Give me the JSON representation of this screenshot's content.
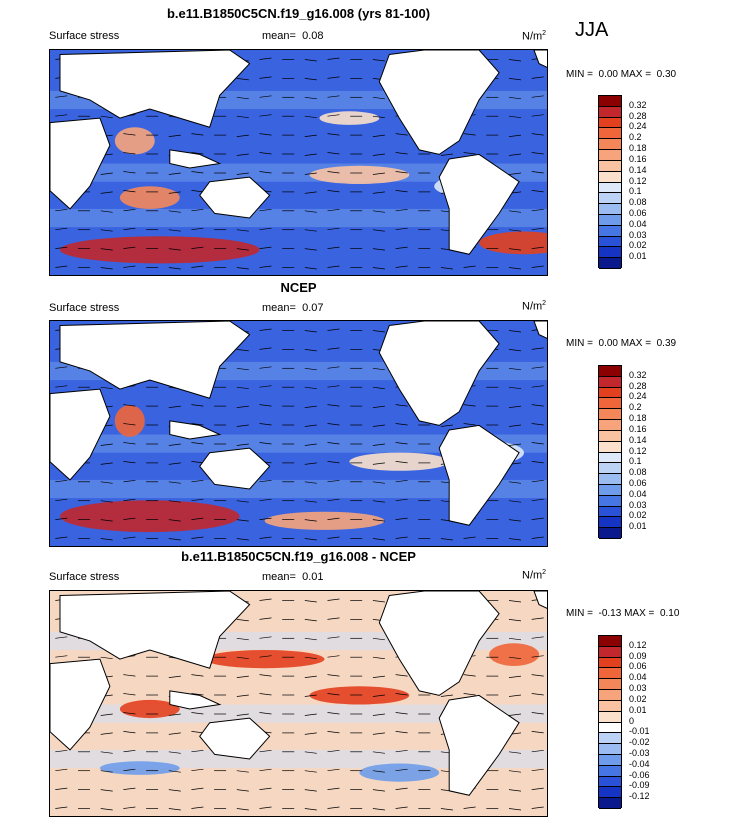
{
  "season": "JJA",
  "chart_data": [
    {
      "type": "heatmap",
      "title": "b.e11.B1850C5CN.f19_g16.008 (yrs 81-100)",
      "left_label": "Surface stress",
      "mean_label": "mean=",
      "mean_value": "0.08",
      "units": "N/m",
      "units_sup": "2",
      "minmax": {
        "min_label": "MIN =",
        "min": "0.00",
        "max_label": "MAX =",
        "max": "0.30"
      },
      "colorbar_levels": [
        "0.32",
        "0.28",
        "0.24",
        "0.2",
        "0.18",
        "0.16",
        "0.14",
        "0.12",
        "0.1",
        "0.08",
        "0.06",
        "0.04",
        "0.03",
        "0.02",
        "0.01"
      ],
      "colorbar_colors": [
        "#8b0000",
        "#c1272d",
        "#e3401f",
        "#f0653a",
        "#f4875a",
        "#f7a47c",
        "#f9c3a2",
        "#fbe1cb",
        "#dde9f9",
        "#bdd3f5",
        "#9bbcf0",
        "#6f9cea",
        "#4676e3",
        "#2a52d8",
        "#1634c4",
        "#0a1a8c"
      ],
      "regions": [
        {
          "level": 0.28,
          "cx": 0.22,
          "cy": 0.88,
          "rx": 0.2,
          "ry": 0.06
        },
        {
          "level": 0.24,
          "cx": 0.95,
          "cy": 0.85,
          "rx": 0.09,
          "ry": 0.05
        },
        {
          "level": 0.18,
          "cx": 0.2,
          "cy": 0.65,
          "rx": 0.06,
          "ry": 0.05
        },
        {
          "level": 0.16,
          "cx": 0.17,
          "cy": 0.4,
          "rx": 0.04,
          "ry": 0.06
        },
        {
          "level": 0.14,
          "cx": 0.62,
          "cy": 0.55,
          "rx": 0.1,
          "ry": 0.04
        },
        {
          "level": 0.12,
          "cx": 0.6,
          "cy": 0.3,
          "rx": 0.06,
          "ry": 0.03
        },
        {
          "level": 0.1,
          "cx": 0.85,
          "cy": 0.6,
          "rx": 0.08,
          "ry": 0.05
        }
      ]
    },
    {
      "type": "heatmap",
      "title": "NCEP",
      "left_label": "Surface stress",
      "mean_label": "mean=",
      "mean_value": "0.07",
      "units": "N/m",
      "units_sup": "2",
      "minmax": {
        "min_label": "MIN =",
        "min": "0.00",
        "max_label": "MAX =",
        "max": "0.39"
      },
      "colorbar_levels": [
        "0.32",
        "0.28",
        "0.24",
        "0.2",
        "0.18",
        "0.16",
        "0.14",
        "0.12",
        "0.1",
        "0.08",
        "0.06",
        "0.04",
        "0.03",
        "0.02",
        "0.01"
      ],
      "colorbar_colors": [
        "#8b0000",
        "#c1272d",
        "#e3401f",
        "#f0653a",
        "#f4875a",
        "#f7a47c",
        "#f9c3a2",
        "#fbe1cb",
        "#dde9f9",
        "#bdd3f5",
        "#9bbcf0",
        "#6f9cea",
        "#4676e3",
        "#2a52d8",
        "#1634c4",
        "#0a1a8c"
      ],
      "regions": [
        {
          "level": 0.28,
          "cx": 0.2,
          "cy": 0.86,
          "rx": 0.18,
          "ry": 0.07
        },
        {
          "level": 0.2,
          "cx": 0.16,
          "cy": 0.44,
          "rx": 0.03,
          "ry": 0.07
        },
        {
          "level": 0.16,
          "cx": 0.55,
          "cy": 0.88,
          "rx": 0.12,
          "ry": 0.04
        },
        {
          "level": 0.12,
          "cx": 0.7,
          "cy": 0.62,
          "rx": 0.1,
          "ry": 0.04
        },
        {
          "level": 0.1,
          "cx": 0.88,
          "cy": 0.58,
          "rx": 0.07,
          "ry": 0.05
        }
      ]
    },
    {
      "type": "heatmap",
      "title": "b.e11.B1850C5CN.f19_g16.008 - NCEP",
      "left_label": "Surface stress",
      "mean_label": "mean=",
      "mean_value": "0.01",
      "units": "N/m",
      "units_sup": "2",
      "minmax": {
        "min_label": "MIN =",
        "min": "-0.13",
        "max_label": "MAX =",
        "max": "0.10"
      },
      "colorbar_levels": [
        "0.12",
        "0.09",
        "0.06",
        "0.04",
        "0.03",
        "0.02",
        "0.01",
        "0",
        "-0.01",
        "-0.02",
        "-0.03",
        "-0.04",
        "-0.06",
        "-0.09",
        "-0.12"
      ],
      "colorbar_colors": [
        "#8b0000",
        "#c1272d",
        "#e3401f",
        "#f0653a",
        "#f4875a",
        "#f7a47c",
        "#f9c3a2",
        "#fbe1cb",
        "#ffffff",
        "#bdd3f5",
        "#9bbcf0",
        "#6f9cea",
        "#4676e3",
        "#2a52d8",
        "#1634c4",
        "#0a1a8c"
      ],
      "regions": [
        {
          "level": 0.06,
          "cx": 0.62,
          "cy": 0.46,
          "rx": 0.1,
          "ry": 0.04
        },
        {
          "level": 0.06,
          "cx": 0.43,
          "cy": 0.3,
          "rx": 0.12,
          "ry": 0.04
        },
        {
          "level": 0.06,
          "cx": 0.2,
          "cy": 0.52,
          "rx": 0.06,
          "ry": 0.04
        },
        {
          "level": 0.04,
          "cx": 0.93,
          "cy": 0.28,
          "rx": 0.05,
          "ry": 0.05
        },
        {
          "level": -0.04,
          "cx": 0.7,
          "cy": 0.8,
          "rx": 0.08,
          "ry": 0.04
        },
        {
          "level": -0.04,
          "cx": 0.18,
          "cy": 0.78,
          "rx": 0.08,
          "ry": 0.03
        },
        {
          "level": 0.03,
          "cx": 0.85,
          "cy": 0.55,
          "rx": 0.06,
          "ry": 0.06
        }
      ]
    }
  ]
}
